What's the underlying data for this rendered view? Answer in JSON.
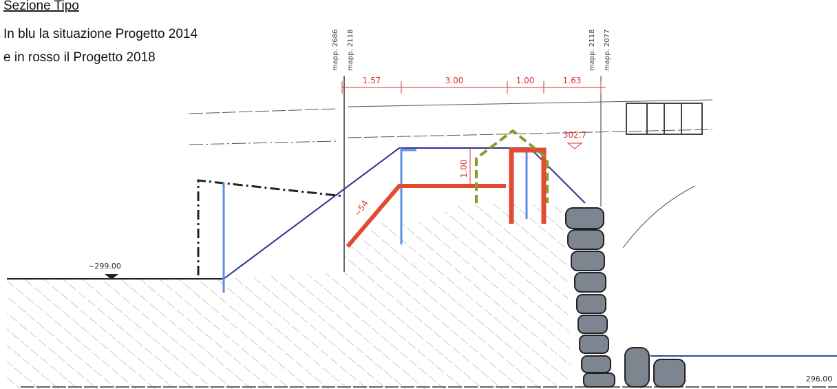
{
  "header": {
    "title": "Sezione Tipo",
    "lines": [
      "In blu la situazione Progetto 2014",
      "e in rosso il Progetto 2018"
    ]
  },
  "parcels": [
    {
      "top": "mapp. 2686",
      "bottom": "mapp. 2118"
    },
    {
      "top": "mapp. 2118",
      "bottom": "mapp. 2077"
    }
  ],
  "dimensions": [
    "1.57",
    "3.00",
    "1.00",
    "1.63"
  ],
  "annotations": {
    "height": "1.00",
    "slope": "~54"
  },
  "elevations": [
    "302.7",
    "~299.00",
    "296.00"
  ]
}
